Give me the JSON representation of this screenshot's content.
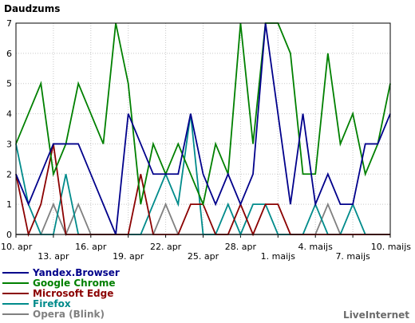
{
  "chart_data": {
    "type": "line",
    "ylabel": "Daudzums",
    "ylim": [
      0,
      7
    ],
    "yticks": [
      0,
      1,
      2,
      3,
      4,
      5,
      6,
      7
    ],
    "x": [
      "10. apr",
      "11. apr",
      "12. apr",
      "13. apr",
      "14. apr",
      "15. apr",
      "16. apr",
      "17. apr",
      "18. apr",
      "19. apr",
      "20. apr",
      "21. apr",
      "22. apr",
      "23. apr",
      "24. apr",
      "25. apr",
      "26. apr",
      "27. apr",
      "28. apr",
      "29. apr",
      "30. apr",
      "1. maijs",
      "2. maijs",
      "3. maijs",
      "4. maijs",
      "5. maijs",
      "6. maijs",
      "7. maijs",
      "8. maijs",
      "9. maijs",
      "10. maijs"
    ],
    "xtick_labels": [
      {
        "index": 0,
        "label": "10. apr",
        "row": 0
      },
      {
        "index": 3,
        "label": "13. apr",
        "row": 1
      },
      {
        "index": 6,
        "label": "16. apr",
        "row": 0
      },
      {
        "index": 9,
        "label": "19. apr",
        "row": 1
      },
      {
        "index": 12,
        "label": "22. apr",
        "row": 0
      },
      {
        "index": 15,
        "label": "25. apr",
        "row": 1
      },
      {
        "index": 18,
        "label": "28. apr",
        "row": 0
      },
      {
        "index": 21,
        "label": "1. maijs",
        "row": 1
      },
      {
        "index": 24,
        "label": "4. maijs",
        "row": 0
      },
      {
        "index": 27,
        "label": "7. maijs",
        "row": 1
      },
      {
        "index": 30,
        "label": "10. maijs",
        "row": 0
      }
    ],
    "grid": true,
    "legend_position": "bottom-left",
    "series": [
      {
        "name": "Yandex.Browser",
        "color": "#00008b",
        "values": [
          2,
          1,
          2,
          3,
          3,
          3,
          2,
          1,
          0,
          4,
          3,
          2,
          2,
          2,
          4,
          2,
          1,
          2,
          1,
          2,
          7,
          4,
          1,
          4,
          1,
          2,
          1,
          1,
          3,
          3,
          4
        ]
      },
      {
        "name": "Google Chrome",
        "color": "#008000",
        "values": [
          3,
          4,
          5,
          2,
          3,
          5,
          4,
          3,
          7,
          5,
          1,
          3,
          2,
          3,
          2,
          1,
          3,
          2,
          7,
          3,
          7,
          7,
          6,
          2,
          2,
          6,
          3,
          4,
          2,
          3,
          5
        ]
      },
      {
        "name": "Microsoft Edge",
        "color": "#8b0000",
        "values": [
          2,
          0,
          1,
          3,
          0,
          0,
          0,
          0,
          0,
          0,
          2,
          0,
          0,
          0,
          1,
          1,
          0,
          0,
          1,
          0,
          1,
          1,
          0,
          0,
          0,
          0,
          0,
          0,
          0,
          0,
          0
        ]
      },
      {
        "name": "Firefox",
        "color": "#008b8b",
        "values": [
          3,
          1,
          0,
          0,
          2,
          0,
          0,
          0,
          0,
          0,
          0,
          1,
          2,
          1,
          4,
          0,
          0,
          1,
          0,
          1,
          1,
          0,
          0,
          0,
          1,
          0,
          0,
          1,
          0,
          0,
          0
        ]
      },
      {
        "name": "Opera (Blink)",
        "color": "#808080",
        "values": [
          0,
          0,
          0,
          1,
          0,
          1,
          0,
          0,
          0,
          0,
          0,
          0,
          1,
          0,
          0,
          0,
          0,
          0,
          0,
          0,
          0,
          0,
          0,
          0,
          0,
          1,
          0,
          0,
          0,
          0,
          0
        ]
      }
    ]
  },
  "brand": "LiveInternet"
}
